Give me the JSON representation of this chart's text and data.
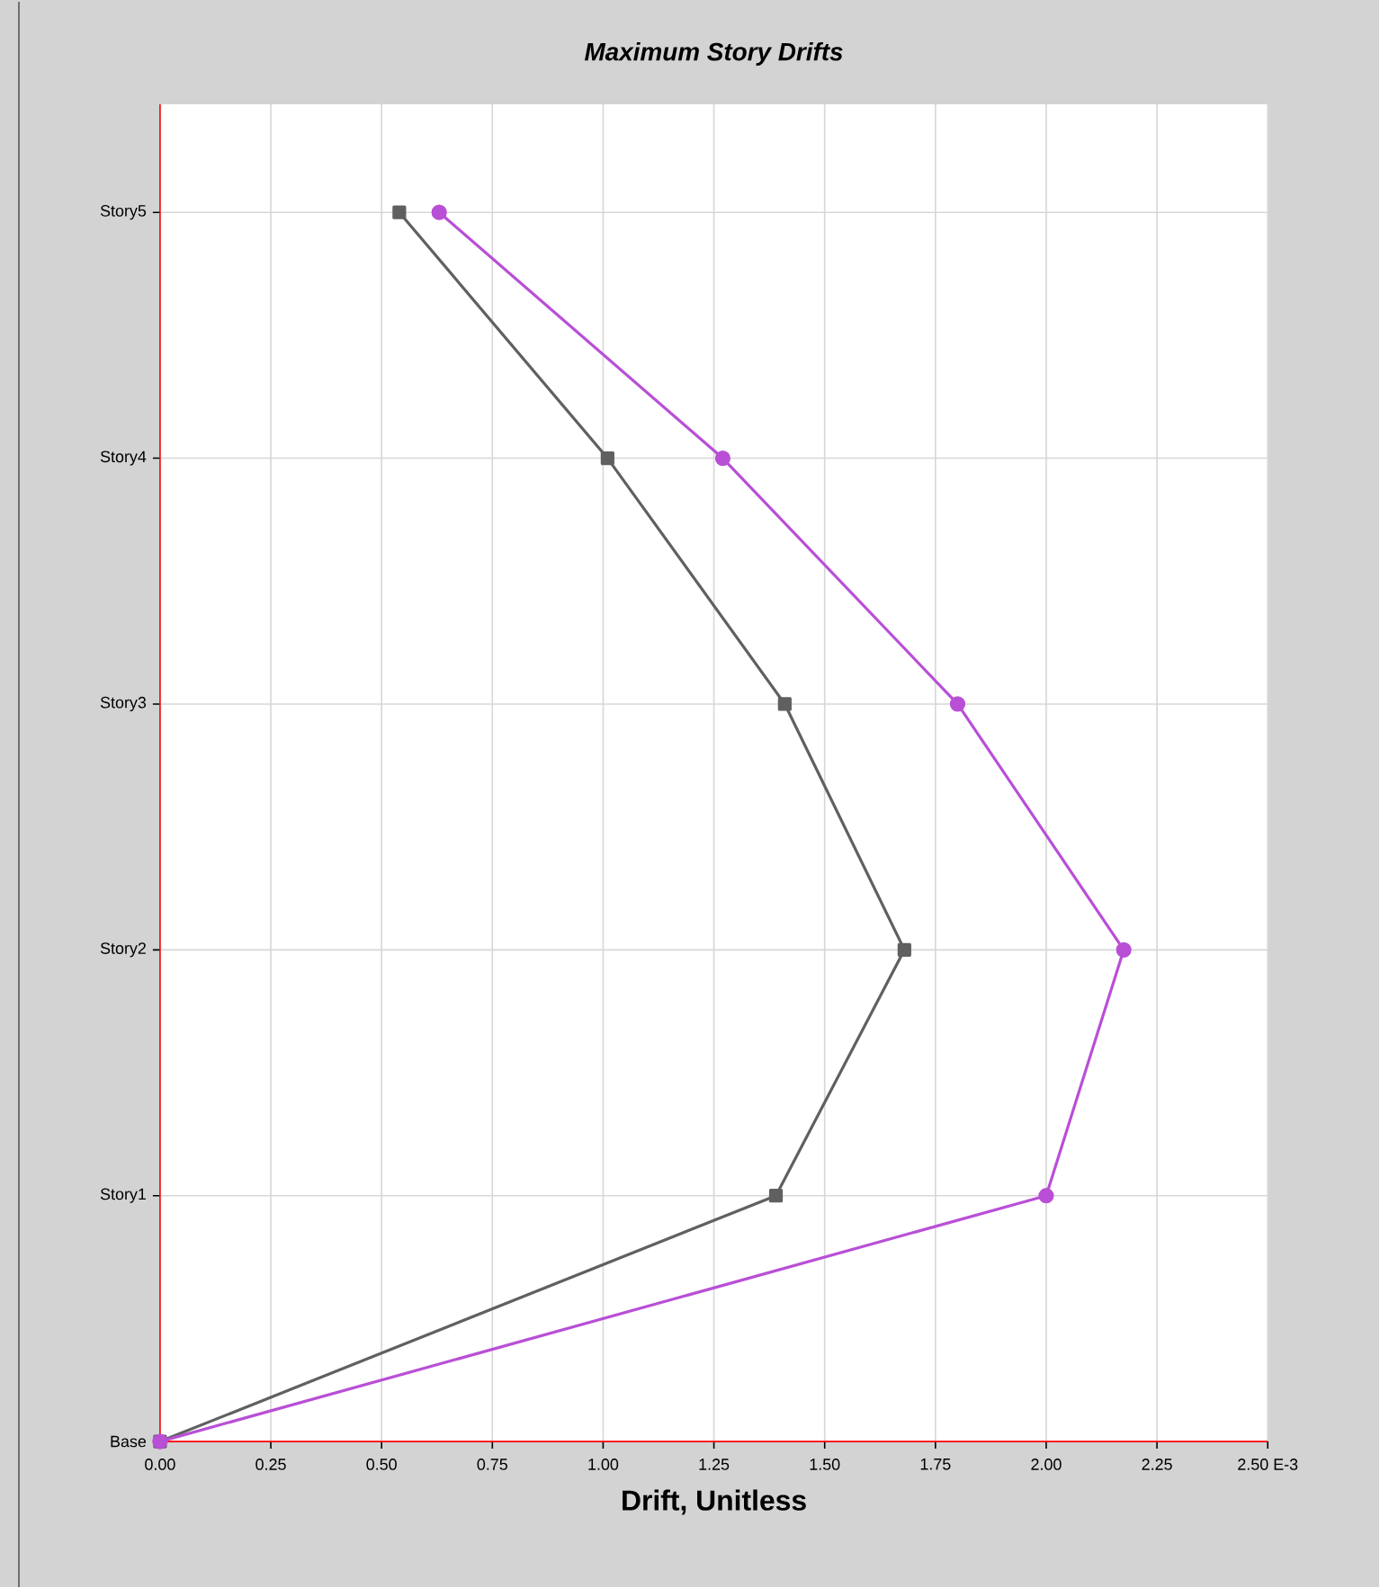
{
  "chart_data": {
    "type": "line",
    "orientation": "horizontal",
    "title": "Maximum Story Drifts",
    "xlabel": "Drift, Unitless",
    "categories": [
      "Story5",
      "Story4",
      "Story3",
      "Story2",
      "Story1",
      "Base"
    ],
    "xlim": [
      0,
      2.5
    ],
    "xticks": [
      {
        "value": 0,
        "label": "0.00"
      },
      {
        "value": 0.25,
        "label": "0.25"
      },
      {
        "value": 0.5,
        "label": "0.50"
      },
      {
        "value": 0.75,
        "label": "0.75"
      },
      {
        "value": 1,
        "label": "1.00"
      },
      {
        "value": 1.25,
        "label": "1.25"
      },
      {
        "value": 1.5,
        "label": "1.50"
      },
      {
        "value": 1.75,
        "label": "1.75"
      },
      {
        "value": 2,
        "label": "2.00"
      },
      {
        "value": 2.25,
        "label": "2.25"
      },
      {
        "value": 2.5,
        "label": "2.50 E-3"
      }
    ],
    "grid": true,
    "series": [
      {
        "color": "#606060",
        "marker": "square",
        "values": [
          0.54,
          1.01,
          1.41,
          1.68,
          1.39,
          0
        ]
      },
      {
        "color": "#b94fd6",
        "marker": "circle",
        "values": [
          0.63,
          1.27,
          1.8,
          2.175,
          2.0,
          0
        ]
      }
    ]
  }
}
